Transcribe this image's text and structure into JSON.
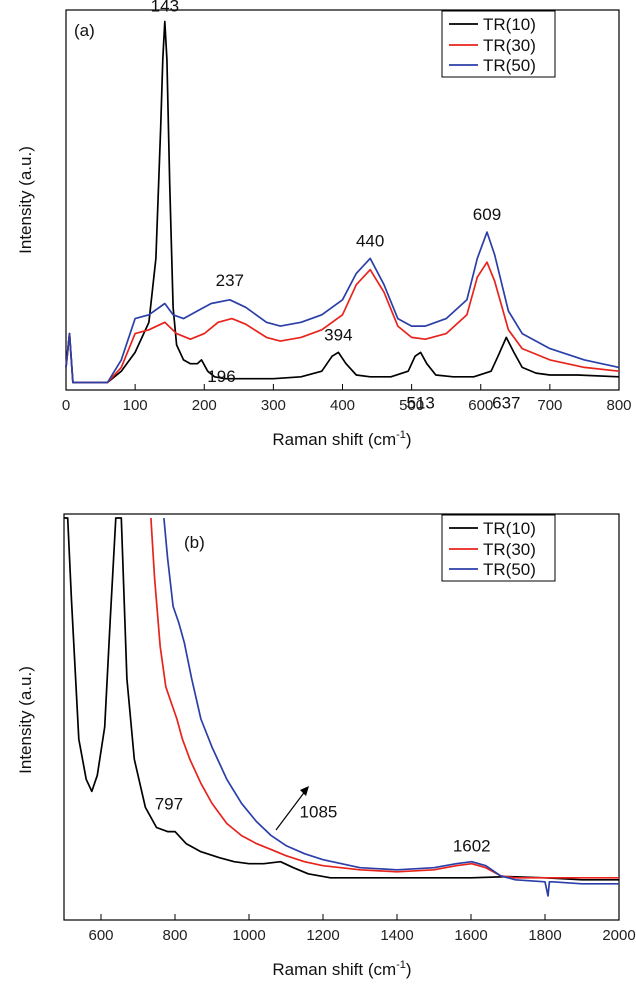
{
  "chart_data": [
    {
      "type": "line",
      "panel_label": "(a)",
      "xlabel": "Raman shift (cm",
      "xlabel_sup": "-1",
      "xlabel_tail": ")",
      "ylabel": "Intensity (a.u.)",
      "xlim": [
        0,
        800
      ],
      "ylim": [
        0,
        100
      ],
      "xticks": [
        0,
        100,
        200,
        300,
        400,
        500,
        600,
        700,
        800
      ],
      "yticks_shown": false,
      "legend_position": "top-right",
      "series": [
        {
          "name": "TR(10)",
          "color": "#000000",
          "x": [
            0,
            5,
            10,
            30,
            60,
            80,
            100,
            120,
            130,
            137,
            140,
            143,
            146,
            150,
            155,
            160,
            170,
            180,
            190,
            196,
            205,
            215,
            230,
            260,
            300,
            340,
            370,
            385,
            394,
            405,
            420,
            440,
            470,
            495,
            505,
            513,
            522,
            535,
            560,
            590,
            615,
            625,
            637,
            648,
            660,
            680,
            700,
            740,
            800
          ],
          "y": [
            6,
            15,
            2,
            2,
            2,
            5,
            10,
            18,
            35,
            70,
            88,
            98,
            88,
            55,
            22,
            12,
            8,
            7,
            7,
            8,
            5,
            3.5,
            3,
            3,
            3,
            3.5,
            5,
            9,
            10,
            7,
            4,
            3.5,
            3.5,
            5,
            9,
            10,
            7,
            4,
            3.5,
            3.5,
            5,
            9,
            14,
            10,
            6,
            4.5,
            4,
            4,
            3.5
          ]
        },
        {
          "name": "TR(30)",
          "color": "#e8231c",
          "x": [
            0,
            5,
            10,
            30,
            60,
            80,
            100,
            120,
            143,
            160,
            180,
            200,
            220,
            240,
            260,
            290,
            310,
            340,
            370,
            400,
            420,
            440,
            460,
            480,
            500,
            520,
            550,
            580,
            595,
            609,
            620,
            640,
            660,
            700,
            750,
            800
          ],
          "y": [
            6,
            15,
            2,
            2,
            2,
            6,
            15,
            16,
            18,
            15,
            13.5,
            15,
            18,
            19,
            17.5,
            14,
            13,
            14,
            16,
            20,
            28,
            32,
            26,
            17,
            14,
            13.5,
            15,
            20,
            30,
            34,
            29,
            16,
            11,
            8,
            6,
            5
          ]
        },
        {
          "name": "TR(50)",
          "color": "#2b3fa8",
          "x": [
            0,
            5,
            10,
            30,
            60,
            80,
            100,
            120,
            143,
            155,
            170,
            190,
            210,
            237,
            260,
            290,
            310,
            340,
            370,
            400,
            420,
            440,
            460,
            480,
            500,
            520,
            550,
            580,
            595,
            609,
            620,
            640,
            660,
            700,
            750,
            800
          ],
          "y": [
            6,
            15,
            2,
            2,
            2,
            8,
            19,
            20,
            23,
            20,
            19,
            21,
            23,
            24,
            22,
            18,
            17,
            18,
            20,
            24,
            31,
            35,
            28,
            19,
            17,
            17,
            19,
            24,
            35,
            42,
            36,
            21,
            15,
            11,
            8,
            6
          ]
        }
      ],
      "annotations": [
        {
          "text": "143",
          "x": 143,
          "y": 98
        },
        {
          "text": "237",
          "x": 237,
          "y": 24
        },
        {
          "text": "196",
          "x": 196,
          "y": 8
        },
        {
          "text": "394",
          "x": 394,
          "y": 10
        },
        {
          "text": "440",
          "x": 440,
          "y": 35
        },
        {
          "text": "513",
          "x": 513,
          "y": 3
        },
        {
          "text": "609",
          "x": 609,
          "y": 42
        },
        {
          "text": "637",
          "x": 637,
          "y": 3
        }
      ]
    },
    {
      "type": "line",
      "panel_label": "(b)",
      "xlabel": "Raman shift (cm",
      "xlabel_sup": "-1",
      "xlabel_tail": ")",
      "ylabel": "Intensity (a.u.)",
      "xlim": [
        500,
        2000
      ],
      "ylim": [
        0,
        100
      ],
      "xticks": [
        600,
        800,
        1000,
        1200,
        1400,
        1600,
        1800,
        2000
      ],
      "yticks_shown": false,
      "legend_position": "top-right",
      "series": [
        {
          "name": "TR(10)",
          "color": "#000000",
          "x": [
            500,
            510,
            520,
            540,
            560,
            575,
            590,
            610,
            625,
            640,
            655,
            670,
            690,
            720,
            750,
            780,
            800,
            830,
            870,
            920,
            960,
            1000,
            1040,
            1085,
            1120,
            1160,
            1220,
            1300,
            1400,
            1500,
            1600,
            1700,
            1800,
            1900,
            2000
          ],
          "y": [
            100,
            100,
            80,
            45,
            35,
            32,
            36,
            48,
            75,
            100,
            100,
            60,
            40,
            28,
            23,
            22,
            22,
            19,
            17,
            15.5,
            14.5,
            14,
            14,
            14.5,
            13,
            11.5,
            10.5,
            10.5,
            10.5,
            10.5,
            10.5,
            10.8,
            10.5,
            10,
            10
          ]
        },
        {
          "name": "TR(30)",
          "color": "#e8231c",
          "x": [
            735,
            745,
            760,
            775,
            790,
            805,
            820,
            840,
            870,
            900,
            940,
            980,
            1020,
            1060,
            1100,
            1150,
            1200,
            1300,
            1400,
            1500,
            1560,
            1602,
            1640,
            1680,
            1720,
            1800,
            1900,
            2000
          ],
          "y": [
            100,
            85,
            68,
            58,
            54,
            50,
            45,
            40,
            34,
            29,
            24,
            21,
            19,
            17.5,
            16,
            14.5,
            13.5,
            12.5,
            12,
            12.5,
            13.5,
            14,
            13,
            11,
            10.5,
            10.5,
            10.5,
            10.5
          ]
        },
        {
          "name": "TR(50)",
          "color": "#2b3fa8",
          "x": [
            770,
            780,
            795,
            810,
            825,
            845,
            870,
            900,
            940,
            980,
            1020,
            1060,
            1100,
            1150,
            1200,
            1300,
            1400,
            1500,
            1560,
            1602,
            1640,
            1680,
            1720,
            1800,
            1808,
            1812,
            1820,
            1900,
            2000
          ],
          "y": [
            100,
            90,
            78,
            74,
            69,
            60,
            50,
            43,
            35,
            29,
            24.5,
            21,
            18.5,
            16.5,
            15,
            13,
            12.5,
            13,
            14,
            14.5,
            13.5,
            11,
            10,
            9.5,
            6,
            9.5,
            9.5,
            9,
            9
          ]
        }
      ],
      "annotations": [
        {
          "text": "797",
          "x": 797,
          "y": 24
        },
        {
          "text": "1085",
          "x": 1085,
          "y": 14.5
        },
        {
          "text": "1602",
          "x": 1602,
          "y": 14.5
        }
      ]
    }
  ]
}
